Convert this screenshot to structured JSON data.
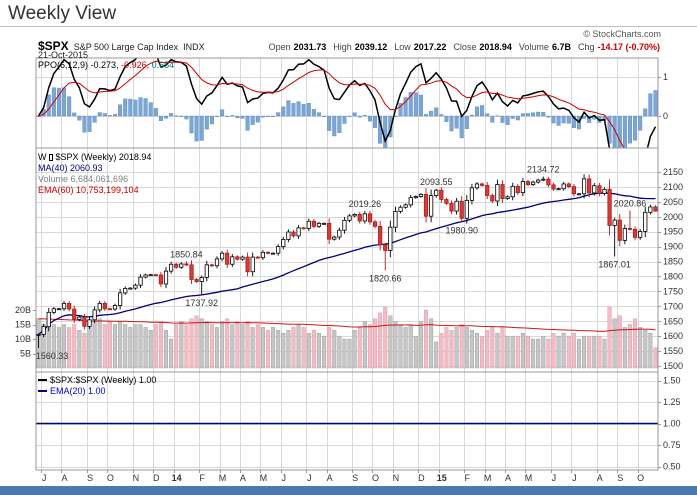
{
  "page": {
    "title": "Weekly View"
  },
  "header": {
    "symbol": "$SPX",
    "name": "S&P 500 Large Cap Index",
    "exchange": "INDX",
    "date": "21-Oct-2015",
    "copyright": "© StockCharts.com",
    "quote_items": [
      {
        "label": "Open",
        "value": "2031.73"
      },
      {
        "label": "High",
        "value": "2039.12"
      },
      {
        "label": "Low",
        "value": "2017.22"
      },
      {
        "label": "Close",
        "value": "2018.94"
      },
      {
        "label": "Volume",
        "value": "6.7B"
      },
      {
        "label": "Chg",
        "value": "-14.17 (-0.70%)"
      }
    ]
  },
  "legends": {
    "ppo": {
      "name": "PPO(6,12,9)",
      "values": [
        "-0.273,",
        "-0.926,",
        "0.654"
      ]
    },
    "main": {
      "style": "W",
      "symbol_rest": "$SPX (Weekly) 2018.94",
      "ma": "MA(40) 2060.93",
      "volume": "Volume 6,684,061,696",
      "vol_ema": "EMA(60) 10,753,199,104"
    },
    "ratio": {
      "line": "$SPX:$SPX (Weekly) 1.00",
      "ema": "EMA(20) 1.00"
    }
  },
  "colors": {
    "up_fill": "#ffffff",
    "up_stroke": "#000000",
    "down_fill": "#d93a35",
    "down_stroke": "#a81f1f",
    "ma_line": "#000080",
    "vol_up_fill": "#c6c6c6",
    "vol_up_stroke": "#969696",
    "vol_down_fill": "#f3bcc5",
    "vol_down_stroke": "#d494a0",
    "vol_ema_line": "#cc0000",
    "vol_text": "#808080",
    "ppo_line": "#000000",
    "ppo_signal": "#cc0000",
    "ppo_hist": "#7ba7d7",
    "ppo_hist_stroke": "#5a85b5",
    "ratio_series": "#000000",
    "ratio_line": "#000080",
    "ratio_ema": "#0000cc",
    "grid": "#d9d9d9",
    "frame": "#999999",
    "axis_text": "#333333",
    "neg_text": "#cc0000",
    "teal_text": "#008080",
    "bottom_bar": "#4b7ab3"
  },
  "chart_data": [
    {
      "type": "candlestick",
      "name": "$SPX S&P 500 Large Cap Index (Weekly)",
      "last_ohlc": {
        "open": 2031.73,
        "high": 2039.12,
        "low": 2017.22,
        "close": 2018.94
      },
      "ma40_last": 2060.93,
      "ylim": [
        1480,
        2224
      ],
      "y_axis": {
        "values": [
          2150,
          2100,
          2050,
          2000,
          1950,
          1900,
          1850,
          1800,
          1750,
          1700,
          1650,
          1600,
          1550,
          1500
        ],
        "labels": [
          "2150",
          "2100",
          "2050",
          "2000",
          "1950",
          "1900",
          "1850",
          "1800",
          "1750",
          "1700",
          "1650",
          "1600",
          "1550",
          "1500"
        ]
      },
      "weekly_closes": [
        1606,
        1632,
        1680,
        1692,
        1692,
        1710,
        1691,
        1656,
        1664,
        1633,
        1655,
        1688,
        1710,
        1692,
        1691,
        1703,
        1745,
        1760,
        1761,
        1771,
        1798,
        1805,
        1806,
        1805,
        1775,
        1818,
        1841,
        1831,
        1842,
        1839,
        1790,
        1783,
        1797,
        1839,
        1836,
        1859,
        1878,
        1841,
        1866,
        1858,
        1865,
        1816,
        1865,
        1863,
        1881,
        1878,
        1878,
        1900,
        1924,
        1949,
        1936,
        1963,
        1961,
        1985,
        1968,
        1978,
        1978,
        1925,
        1932,
        1955,
        1988,
        2003,
        2008,
        1986,
        2010,
        1983,
        1968,
        1906,
        1887,
        1965,
        2018,
        2032,
        2040,
        2064,
        2068,
        2075,
        2002,
        2071,
        2089,
        2058,
        2045,
        2019,
        2052,
        1995,
        2055,
        2097,
        2110,
        2105,
        2071,
        2053,
        2108,
        2061,
        2067,
        2102,
        2081,
        2118,
        2108,
        2116,
        2123,
        2126,
        2107,
        2093,
        2094,
        2110,
        2101,
        2077,
        2077,
        2127,
        2080,
        2104,
        2078,
        2092,
        1971,
        1989,
        1921,
        1961,
        1958,
        1931,
        1951,
        2015,
        2033,
        2019
      ],
      "wick_overrides": {
        "0": {
          "low": 1560.33
        },
        "29": {
          "high": 1850.84
        },
        "32": {
          "low": 1737.92
        },
        "64": {
          "high": 2019.26
        },
        "68": {
          "low": 1820.66
        },
        "78": {
          "high": 2093.55
        },
        "83": {
          "low": 1980.9
        },
        "99": {
          "high": 2134.72
        },
        "113": {
          "low": 1867.01
        },
        "116": {
          "high": 2020.86
        },
        "121": {
          "high": 2039.12,
          "low": 2017.22
        }
      },
      "annotations": [
        {
          "index": 0,
          "price": 1560.33,
          "text": "1560.33",
          "side": "below"
        },
        {
          "index": 29,
          "price": 1850.84,
          "text": "1850.84",
          "side": "above"
        },
        {
          "index": 32,
          "price": 1737.92,
          "text": "1737.92",
          "side": "below"
        },
        {
          "index": 64,
          "price": 2019.26,
          "text": "2019.26",
          "side": "above"
        },
        {
          "index": 68,
          "price": 1820.66,
          "text": "1820.66",
          "side": "below"
        },
        {
          "index": 78,
          "price": 2093.55,
          "text": "2093.55",
          "side": "above"
        },
        {
          "index": 83,
          "price": 1980.9,
          "text": "1980.90",
          "side": "below"
        },
        {
          "index": 99,
          "price": 2134.72,
          "text": "2134.72",
          "side": "above"
        },
        {
          "index": 113,
          "price": 1867.01,
          "text": "1867.01",
          "side": "below"
        },
        {
          "index": 116,
          "price": 2020.86,
          "text": "2020.86",
          "side": "above"
        }
      ],
      "months": [
        {
          "label": "J",
          "index": 1
        },
        {
          "label": "A",
          "index": 5
        },
        {
          "label": "S",
          "index": 10
        },
        {
          "label": "O",
          "index": 14
        },
        {
          "label": "N",
          "index": 19
        },
        {
          "label": "D",
          "index": 23
        },
        {
          "label": "14",
          "index": 27,
          "bold": true
        },
        {
          "label": "F",
          "index": 32
        },
        {
          "label": "M",
          "index": 36
        },
        {
          "label": "A",
          "index": 40
        },
        {
          "label": "M",
          "index": 44
        },
        {
          "label": "J",
          "index": 48
        },
        {
          "label": "J",
          "index": 53
        },
        {
          "label": "A",
          "index": 57
        },
        {
          "label": "S",
          "index": 62
        },
        {
          "label": "O",
          "index": 66
        },
        {
          "label": "N",
          "index": 70
        },
        {
          "label": "D",
          "index": 75
        },
        {
          "label": "15",
          "index": 79,
          "bold": true
        },
        {
          "label": "F",
          "index": 84
        },
        {
          "label": "M",
          "index": 88
        },
        {
          "label": "A",
          "index": 92
        },
        {
          "label": "M",
          "index": 96
        },
        {
          "label": "J",
          "index": 101
        },
        {
          "label": "J",
          "index": 105
        },
        {
          "label": "A",
          "index": 110
        },
        {
          "label": "S",
          "index": 114
        },
        {
          "label": "O",
          "index": 118
        }
      ],
      "volume": {
        "last_value": 6684061696,
        "ema60_last": 10753199104,
        "y_axis": {
          "values": [
            20,
            15,
            10,
            5
          ],
          "labels": [
            "20B",
            "15B",
            "10B",
            "5B"
          ]
        },
        "values_billions": [
          17,
          15,
          16,
          15,
          14,
          15,
          14,
          15,
          13,
          12,
          14,
          16,
          17,
          15,
          16,
          15,
          16,
          15,
          14,
          15,
          15,
          14,
          13,
          15,
          16,
          13,
          10,
          15,
          16,
          15,
          17,
          18,
          17,
          16,
          15,
          14,
          16,
          17,
          15,
          16,
          15,
          16,
          14,
          15,
          14,
          13,
          14,
          13,
          12,
          13,
          14,
          15,
          14,
          12,
          13,
          12,
          11,
          14,
          13,
          11,
          10,
          10,
          13,
          14,
          16,
          15,
          17,
          19,
          21,
          18,
          16,
          15,
          14,
          15,
          11,
          16,
          20,
          17,
          9,
          12,
          14,
          13,
          14,
          15,
          14,
          13,
          12,
          11,
          13,
          14,
          12,
          14,
          11,
          11,
          11,
          12,
          11,
          10,
          10,
          11,
          10,
          12,
          11,
          12,
          11,
          12,
          10,
          11,
          11,
          11,
          11,
          10,
          21,
          17,
          18,
          14,
          15,
          17,
          14,
          13,
          12,
          7
        ]
      }
    },
    {
      "type": "line",
      "name": "PPO(6,12,9)",
      "params": [
        6,
        12,
        9
      ],
      "last_values": {
        "ppo": -0.273,
        "signal": -0.926,
        "histogram": 0.654
      },
      "y_axis": {
        "values": [
          1,
          0
        ],
        "labels": [
          "1",
          "0"
        ]
      }
    },
    {
      "type": "line",
      "name": "$SPX:$SPX (Weekly)",
      "constant_value": 1.0,
      "ema20_last": 1.0,
      "ylim": [
        0.45,
        1.6
      ],
      "y_axis": {
        "values": [
          1.5,
          1.25,
          1.0,
          0.75,
          0.5
        ],
        "labels": [
          "1.50",
          "1.25",
          "1.00",
          "0.75",
          "0.50"
        ]
      }
    }
  ]
}
